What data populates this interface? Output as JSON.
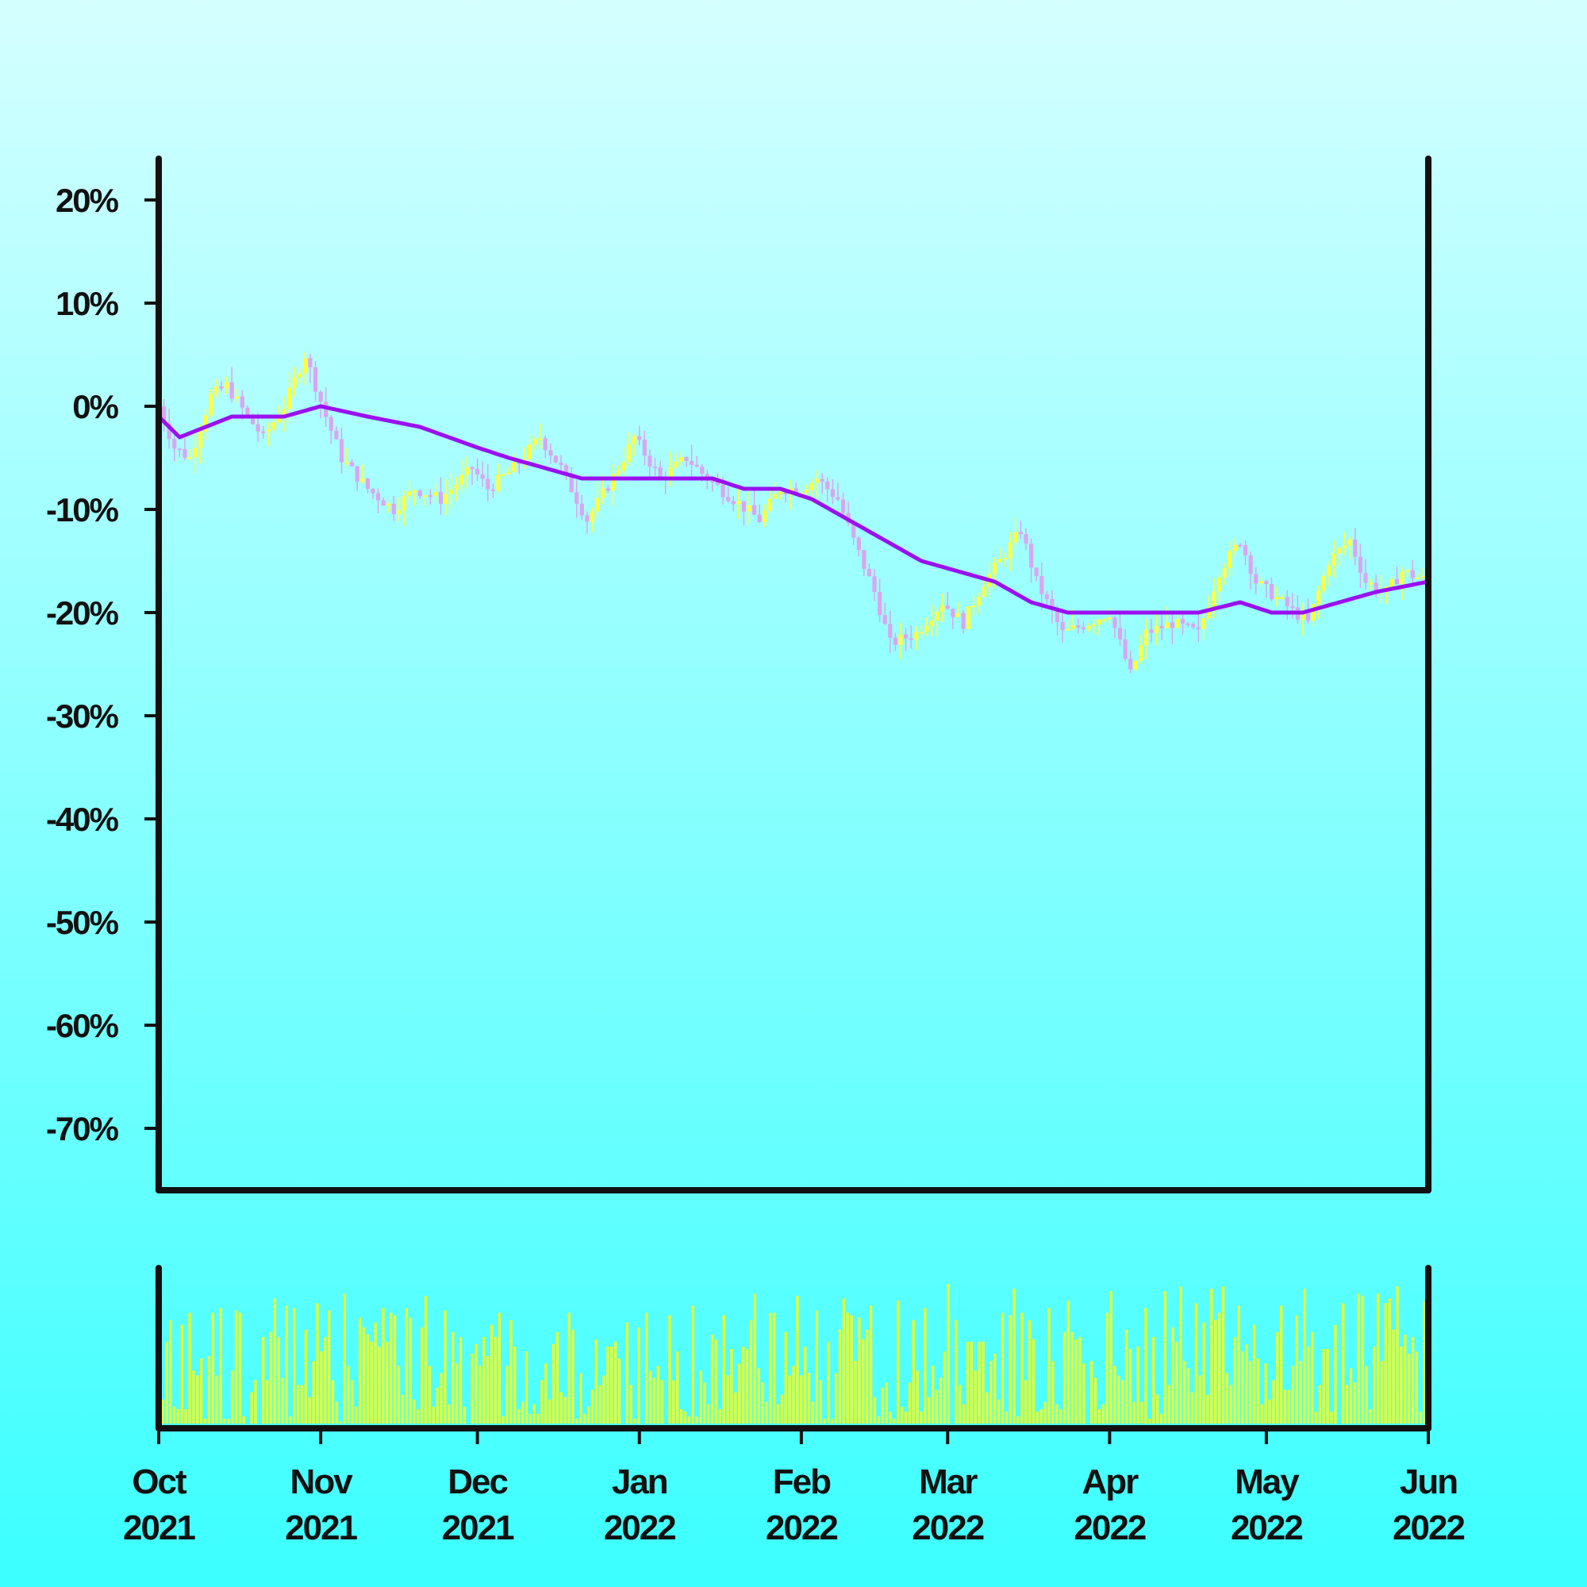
{
  "chart_data": {
    "type": "candlestick",
    "y_unit": "% change",
    "price_panel": {
      "ylim": [
        -76,
        24
      ],
      "y_ticks": [
        "20%",
        "10%",
        "0%",
        "-10%",
        "-20%",
        "-30%",
        "-40%",
        "-50%",
        "-60%",
        "-70%"
      ],
      "y_tick_values": [
        20,
        10,
        0,
        -10,
        -20,
        -30,
        -40,
        -50,
        -60,
        -70
      ],
      "candle_up_color": "#ffff40",
      "candle_down_color": "#d9a6f2",
      "moving_average_color": "#9b10f0",
      "price_anchors": [
        [
          "2021-10-01",
          0
        ],
        [
          "2021-10-04",
          -4
        ],
        [
          "2021-10-07",
          -5
        ],
        [
          "2021-10-11",
          1
        ],
        [
          "2021-10-14",
          2
        ],
        [
          "2021-10-18",
          -1
        ],
        [
          "2021-10-21",
          -3
        ],
        [
          "2021-10-25",
          0
        ],
        [
          "2021-10-29",
          5
        ],
        [
          "2021-11-02",
          -1
        ],
        [
          "2021-11-05",
          -5
        ],
        [
          "2021-11-10",
          -8
        ],
        [
          "2021-11-15",
          -10
        ],
        [
          "2021-11-19",
          -8
        ],
        [
          "2021-11-24",
          -9
        ],
        [
          "2021-11-30",
          -6
        ],
        [
          "2021-12-03",
          -8
        ],
        [
          "2021-12-08",
          -6
        ],
        [
          "2021-12-13",
          -3
        ],
        [
          "2021-12-17",
          -6
        ],
        [
          "2021-12-22",
          -11
        ],
        [
          "2021-12-28",
          -6
        ],
        [
          "2021-12-31",
          -3
        ],
        [
          "2022-01-05",
          -7
        ],
        [
          "2022-01-10",
          -5
        ],
        [
          "2022-01-14",
          -7
        ],
        [
          "2022-01-19",
          -9
        ],
        [
          "2022-01-24",
          -11
        ],
        [
          "2022-01-28",
          -8
        ],
        [
          "2022-02-01",
          -8
        ],
        [
          "2022-02-04",
          -7
        ],
        [
          "2022-02-08",
          -9
        ],
        [
          "2022-02-11",
          -13
        ],
        [
          "2022-02-15",
          -18
        ],
        [
          "2022-02-18",
          -23
        ],
        [
          "2022-02-23",
          -22
        ],
        [
          "2022-02-28",
          -19
        ],
        [
          "2022-03-04",
          -21
        ],
        [
          "2022-03-08",
          -17
        ],
        [
          "2022-03-11",
          -15
        ],
        [
          "2022-03-15",
          -12
        ],
        [
          "2022-03-18",
          -17
        ],
        [
          "2022-03-23",
          -22
        ],
        [
          "2022-03-28",
          -21
        ],
        [
          "2022-04-01",
          -20
        ],
        [
          "2022-04-05",
          -26
        ],
        [
          "2022-04-08",
          -22
        ],
        [
          "2022-04-13",
          -21
        ],
        [
          "2022-04-18",
          -22
        ],
        [
          "2022-04-22",
          -16
        ],
        [
          "2022-04-26",
          -13
        ],
        [
          "2022-04-29",
          -17
        ],
        [
          "2022-05-04",
          -19
        ],
        [
          "2022-05-09",
          -21
        ],
        [
          "2022-05-13",
          -15
        ],
        [
          "2022-05-17",
          -13
        ],
        [
          "2022-05-20",
          -17
        ],
        [
          "2022-05-24",
          -18
        ],
        [
          "2022-05-27",
          -16
        ],
        [
          "2022-06-01",
          -17
        ]
      ],
      "moving_average": [
        [
          "2021-10-01",
          -1
        ],
        [
          "2021-10-05",
          -3
        ],
        [
          "2021-10-10",
          -2
        ],
        [
          "2021-10-15",
          -1
        ],
        [
          "2021-10-20",
          -1
        ],
        [
          "2021-10-25",
          -1
        ],
        [
          "2021-11-01",
          0
        ],
        [
          "2021-11-10",
          -1
        ],
        [
          "2021-11-20",
          -2
        ],
        [
          "2021-12-01",
          -4
        ],
        [
          "2021-12-07",
          -5
        ],
        [
          "2021-12-14",
          -6
        ],
        [
          "2021-12-21",
          -7
        ],
        [
          "2021-12-28",
          -7
        ],
        [
          "2022-01-07",
          -7
        ],
        [
          "2022-01-15",
          -7
        ],
        [
          "2022-01-21",
          -8
        ],
        [
          "2022-01-28",
          -8
        ],
        [
          "2022-02-03",
          -9
        ],
        [
          "2022-02-10",
          -11
        ],
        [
          "2022-02-17",
          -13
        ],
        [
          "2022-02-24",
          -15
        ],
        [
          "2022-03-03",
          -16
        ],
        [
          "2022-03-10",
          -17
        ],
        [
          "2022-03-17",
          -19
        ],
        [
          "2022-03-24",
          -20
        ],
        [
          "2022-04-01",
          -20
        ],
        [
          "2022-04-10",
          -20
        ],
        [
          "2022-04-18",
          -20
        ],
        [
          "2022-04-26",
          -19
        ],
        [
          "2022-05-02",
          -20
        ],
        [
          "2022-05-08",
          -20
        ],
        [
          "2022-05-15",
          -19
        ],
        [
          "2022-05-22",
          -18
        ],
        [
          "2022-06-01",
          -17
        ]
      ]
    },
    "volume_panel": {
      "bar_color": "#e4ff33",
      "values": [
        18,
        10,
        34,
        43,
        7,
        6,
        41,
        6,
        46,
        22,
        20,
        27,
        2,
        28,
        46,
        20,
        48,
        2,
        2,
        22,
        47,
        46,
        3,
        0,
        13,
        18,
        0,
        36,
        18,
        38,
        52,
        36,
        19,
        49,
        3,
        48,
        16,
        16,
        39,
        11,
        26,
        50,
        30,
        36,
        47,
        18,
        9,
        1,
        54,
        24,
        18,
        7,
        44,
        40,
        37,
        34,
        42,
        32,
        48,
        34,
        46,
        45,
        24,
        12,
        48,
        44,
        10,
        6,
        40,
        53,
        24,
        7,
        15,
        21,
        47,
        8,
        38,
        25,
        36,
        7,
        0,
        29,
        33,
        24,
        36,
        28,
        41,
        36,
        46,
        3,
        24,
        43,
        32,
        6,
        9,
        30,
        4,
        8,
        4,
        18,
        25,
        10,
        33,
        38,
        13,
        11,
        46,
        39,
        2,
        21,
        4,
        7,
        14,
        35,
        16,
        20,
        32,
        32,
        34,
        27,
        0,
        42,
        16,
        2,
        40,
        0,
        46,
        22,
        19,
        24,
        18,
        0,
        45,
        18,
        30,
        6,
        5,
        3,
        49,
        3,
        22,
        17,
        8,
        37,
        35,
        6,
        45,
        20,
        31,
        13,
        25,
        32,
        31,
        43,
        54,
        23,
        17,
        9,
        46,
        46,
        8,
        12,
        38,
        20,
        24,
        53,
        20,
        32,
        21,
        9,
        47,
        18,
        2,
        34,
        2,
        21,
        39,
        52,
        46,
        45,
        26,
        44,
        35,
        39,
        49,
        11,
        3,
        15,
        17,
        5,
        2,
        51,
        7,
        5,
        17,
        43,
        22,
        5,
        48,
        11,
        24,
        14,
        19,
        30,
        58,
        0,
        43,
        16,
        8,
        34,
        34,
        22,
        34,
        34,
        13,
        26,
        29,
        10,
        46,
        5,
        45,
        56,
        3,
        46,
        18,
        43,
        35,
        5,
        6,
        9,
        48,
        26,
        8,
        6,
        38,
        51,
        38,
        35,
        36,
        25,
        0,
        26,
        19,
        6,
        8,
        46,
        55,
        24,
        20,
        18,
        39,
        31,
        9,
        32,
        9,
        48,
        2,
        36,
        12,
        4,
        55,
        16,
        40,
        34,
        57,
        26,
        23,
        13,
        50,
        20,
        42,
        12,
        56,
        43,
        46,
        57,
        21,
        16,
        36,
        49,
        30,
        33,
        26,
        41,
        27,
        8,
        25,
        10,
        18,
        38,
        49,
        14,
        14,
        24,
        45,
        26,
        56,
        32,
        38,
        5,
        16,
        31,
        31,
        5,
        41,
        0,
        50,
        16,
        23,
        17,
        54,
        53,
        24,
        6,
        32,
        54,
        26,
        50,
        52,
        39,
        57,
        32,
        37,
        29,
        36,
        30,
        5,
        51,
        5
      ]
    },
    "x_ticks": [
      "Oct\n2021",
      "Nov\n2021",
      "Dec\n2021",
      "Jan\n2022",
      "Feb\n2022",
      "Mar\n2022",
      "Apr\n2022",
      "May\n2022",
      "Jun\n2022"
    ],
    "x_tick_dates": [
      "2021-10-01",
      "2021-11-01",
      "2021-12-01",
      "2022-01-01",
      "2022-02-01",
      "2022-03-01",
      "2022-04-01",
      "2022-05-01",
      "2022-06-01"
    ],
    "x_range": [
      "2021-10-01",
      "2022-06-01"
    ],
    "grid": false,
    "legend": "none",
    "title": "",
    "xlabel": "",
    "ylabel": ""
  }
}
